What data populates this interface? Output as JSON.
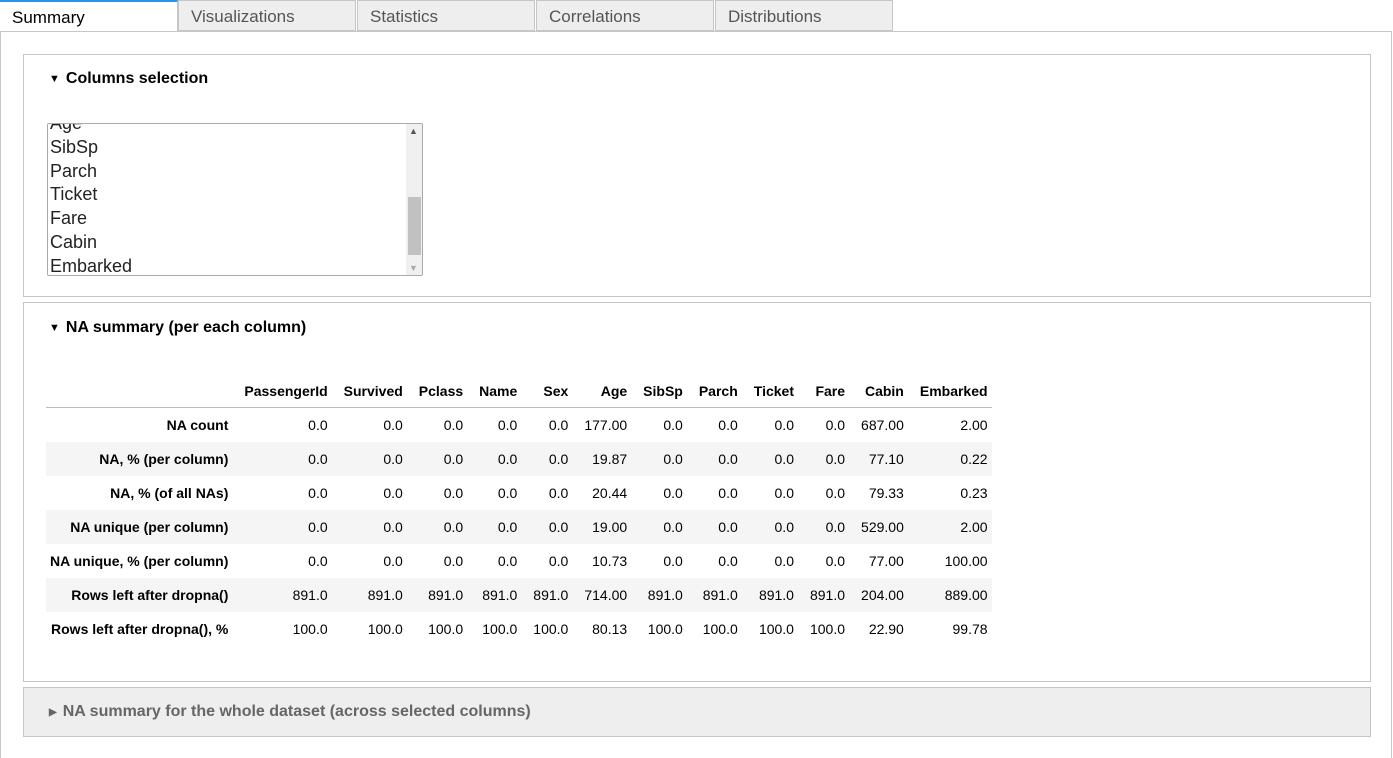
{
  "tabs": [
    "Summary",
    "Visualizations",
    "Statistics",
    "Correlations",
    "Distributions"
  ],
  "active_tab": "Summary",
  "columns_selection": {
    "title": "Columns selection",
    "items": [
      "Age",
      "SibSp",
      "Parch",
      "Ticket",
      "Fare",
      "Cabin",
      "Embarked"
    ]
  },
  "na_summary": {
    "title": "NA summary (per each column)",
    "headers": [
      "",
      "PassengerId",
      "Survived",
      "Pclass",
      "Name",
      "Sex",
      "Age",
      "SibSp",
      "Parch",
      "Ticket",
      "Fare",
      "Cabin",
      "Embarked"
    ],
    "rows": [
      [
        "NA count",
        "0.0",
        "0.0",
        "0.0",
        "0.0",
        "0.0",
        "177.00",
        "0.0",
        "0.0",
        "0.0",
        "0.0",
        "687.00",
        "2.00"
      ],
      [
        "NA, % (per column)",
        "0.0",
        "0.0",
        "0.0",
        "0.0",
        "0.0",
        "19.87",
        "0.0",
        "0.0",
        "0.0",
        "0.0",
        "77.10",
        "0.22"
      ],
      [
        "NA, % (of all NAs)",
        "0.0",
        "0.0",
        "0.0",
        "0.0",
        "0.0",
        "20.44",
        "0.0",
        "0.0",
        "0.0",
        "0.0",
        "79.33",
        "0.23"
      ],
      [
        "NA unique (per column)",
        "0.0",
        "0.0",
        "0.0",
        "0.0",
        "0.0",
        "19.00",
        "0.0",
        "0.0",
        "0.0",
        "0.0",
        "529.00",
        "2.00"
      ],
      [
        "NA unique, % (per column)",
        "0.0",
        "0.0",
        "0.0",
        "0.0",
        "0.0",
        "10.73",
        "0.0",
        "0.0",
        "0.0",
        "0.0",
        "77.00",
        "100.00"
      ],
      [
        "Rows left after dropna()",
        "891.0",
        "891.0",
        "891.0",
        "891.0",
        "891.0",
        "714.00",
        "891.0",
        "891.0",
        "891.0",
        "891.0",
        "204.00",
        "889.00"
      ],
      [
        "Rows left after dropna(), %",
        "100.0",
        "100.0",
        "100.0",
        "100.0",
        "100.0",
        "80.13",
        "100.0",
        "100.0",
        "100.0",
        "100.0",
        "22.90",
        "99.78"
      ]
    ]
  },
  "whole_dataset": {
    "title": "NA summary for the whole dataset (across selected columns)"
  }
}
